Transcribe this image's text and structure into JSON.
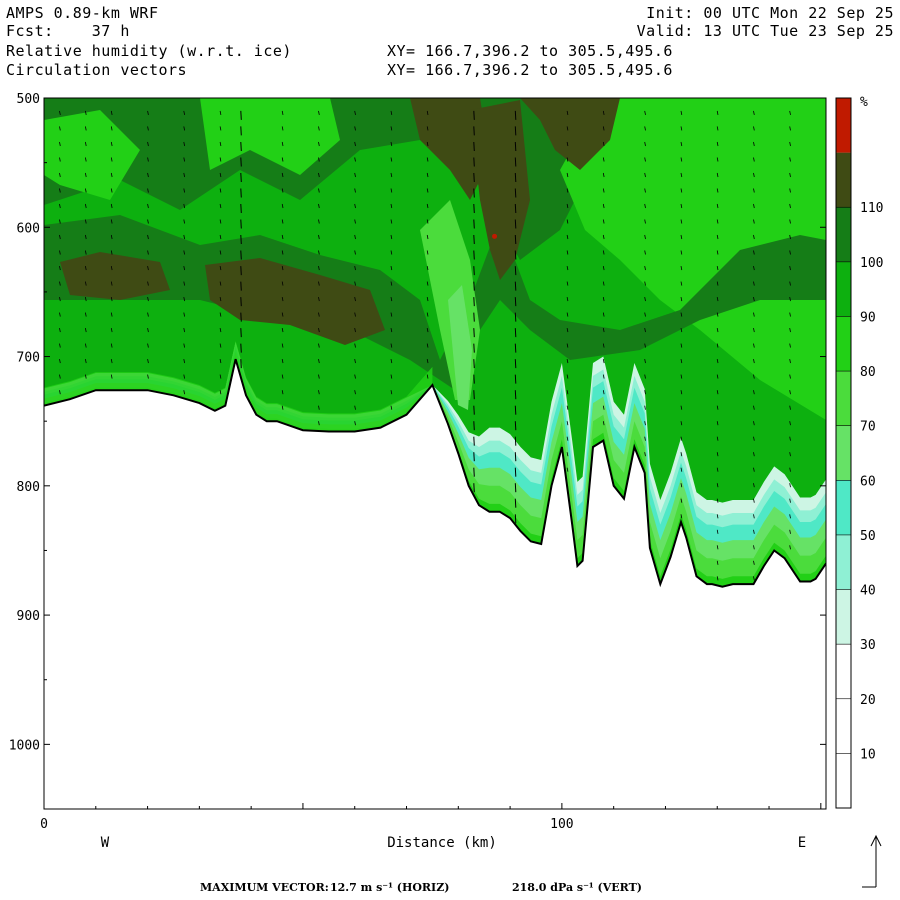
{
  "header": {
    "model": "AMPS 0.89-km WRF",
    "fcst_label": "Fcst:",
    "fcst_value": "37 h",
    "init": "Init: 00 UTC Mon 22 Sep 25",
    "valid": "Valid: 13 UTC Tue 23 Sep 25",
    "field1": "Relative humidity (w.r.t. ice)",
    "field2": "Circulation vectors",
    "xy1": "XY= 166.7,396.2 to 305.5,495.6",
    "xy2": "XY= 166.7,396.2 to 305.5,495.6"
  },
  "footer": {
    "max_vector_label": "MAXIMUM VECTOR:",
    "horiz": "12.7 m s⁻¹ (HORIZ)",
    "vert": "218.0 dPa s⁻¹ (VERT)"
  },
  "colors": {
    "lt30": "#ffffff",
    "c30": "#cdf5e4",
    "c40": "#8ff0d4",
    "c50": "#4fe8c6",
    "c60": "#66e266",
    "c70": "#4bdc3c",
    "c80": "#22d016",
    "c90": "#0db00f",
    "c100": "#157d17",
    "c110": "#3f4b14",
    "gt110": "#c01a00"
  },
  "chart_data": {
    "type": "cross-section",
    "title": "Relative humidity (w.r.t. ice)",
    "xlabel": "Distance (km)",
    "ylabel": "",
    "x_ticks": [
      "0",
      "100"
    ],
    "x_range": [
      0,
      151
    ],
    "x_end_labels": {
      "west": "W",
      "east": "E"
    },
    "y_ticks": [
      "500",
      "600",
      "700",
      "800",
      "900",
      "1000"
    ],
    "y_range": [
      500,
      1050
    ],
    "colorbar": {
      "unit": "%",
      "levels": [
        10,
        20,
        30,
        40,
        50,
        60,
        70,
        80,
        90,
        100,
        110
      ]
    },
    "terrain": {
      "x": [
        0,
        5,
        10,
        15,
        20,
        25,
        30,
        33,
        35,
        37,
        39,
        41,
        43,
        45,
        50,
        55,
        60,
        65,
        70,
        75,
        78,
        80,
        82,
        84,
        86,
        88,
        90,
        92,
        94,
        96,
        98,
        100,
        102,
        103,
        104,
        106,
        108,
        110,
        112,
        114,
        116,
        117,
        119,
        121,
        123,
        124,
        126,
        128,
        129,
        131,
        133,
        135,
        137,
        139,
        141,
        143,
        146,
        148,
        149,
        151
      ],
      "p": [
        738,
        733,
        726,
        726,
        726,
        730,
        736,
        742,
        738,
        702,
        730,
        745,
        750,
        750,
        757,
        758,
        758,
        755,
        745,
        722,
        752,
        775,
        800,
        815,
        820,
        820,
        825,
        835,
        843,
        845,
        800,
        770,
        830,
        862,
        858,
        770,
        765,
        800,
        810,
        770,
        790,
        848,
        876,
        855,
        828,
        840,
        870,
        876,
        876,
        878,
        876,
        876,
        876,
        862,
        850,
        856,
        874,
        874,
        872,
        860
      ]
    },
    "rh_bands": [
      {
        "level": 30,
        "offset_hpa": 65
      },
      {
        "level": 40,
        "offset_hpa": 55
      },
      {
        "level": 50,
        "offset_hpa": 46
      },
      {
        "level": 60,
        "offset_hpa": 34
      },
      {
        "level": 70,
        "offset_hpa": 20
      },
      {
        "level": 80,
        "offset_hpa": 6
      }
    ],
    "rh_max_marker": {
      "x": 87,
      "p": 607
    }
  }
}
